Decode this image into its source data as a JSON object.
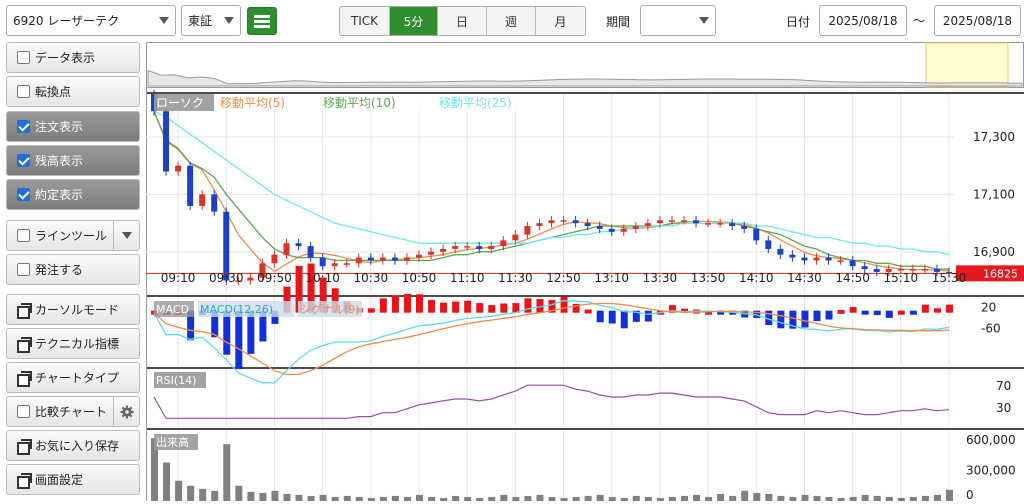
{
  "toolbar": {
    "stock_select": "6920 レーザーテク",
    "market_select": "東証",
    "periods": [
      {
        "label": "TICK",
        "active": false
      },
      {
        "label": "5分",
        "active": true
      },
      {
        "label": "日",
        "active": false
      },
      {
        "label": "週",
        "active": false
      },
      {
        "label": "月",
        "active": false
      }
    ],
    "range_label": "期間",
    "range_select": "",
    "date_label": "日付",
    "date_from": "2025/08/18",
    "date_sep": "～",
    "date_to": "2025/08/18"
  },
  "sidebar": {
    "items": [
      {
        "label": "データ表示",
        "icon": "checkbox",
        "checked": false
      },
      {
        "label": "転換点",
        "icon": "checkbox",
        "checked": false
      },
      {
        "label": "注文表示",
        "icon": "checkbox",
        "checked": true
      },
      {
        "label": "残高表示",
        "icon": "checkbox",
        "checked": true
      },
      {
        "label": "約定表示",
        "icon": "checkbox",
        "checked": true
      },
      {
        "label": "ラインツール",
        "icon": "checkbox",
        "checked": false
      },
      {
        "label": "発注する",
        "icon": "checkbox",
        "checked": false
      },
      {
        "label": "カーソルモード",
        "icon": "window-icon",
        "checked": false
      },
      {
        "label": "テクニカル指標",
        "icon": "window-icon",
        "checked": false
      },
      {
        "label": "チャートタイプ",
        "icon": "window-icon",
        "checked": false
      },
      {
        "label": "比較チャート",
        "icon": "checkbox",
        "checked": false
      },
      {
        "label": "お気に入り保存",
        "icon": "window-icon",
        "checked": false
      },
      {
        "label": "画面設定",
        "icon": "window-icon",
        "checked": false
      }
    ]
  },
  "colors": {
    "up": "#d9332a",
    "down": "#1f3fc4",
    "ma5": "#f28c4a",
    "ma10": "#5fa55a",
    "ma25": "#6fe6f0",
    "accent": "#2f8f2f",
    "rsi": "#9b4fa8",
    "volume": "#808080"
  },
  "main_chart": {
    "legend": [
      "ローソク",
      "移動平均(5)",
      "移動平均(10)",
      "移動平均(25)"
    ],
    "price_ticks": [
      "17,300",
      "17,100",
      "16,900"
    ],
    "current_price": "16825",
    "time_labels": [
      "09:10",
      "09:30",
      "09:50",
      "10:10",
      "10:30",
      "10:50",
      "11:10",
      "11:30",
      "12:50",
      "13:10",
      "13:30",
      "13:50",
      "14:10",
      "14:30",
      "14:50",
      "15:10",
      "15:30"
    ]
  },
  "chart_data": {
    "type": "line",
    "x": [
      "09:00",
      "09:05",
      "09:10",
      "09:15",
      "09:20",
      "09:25",
      "09:30",
      "09:35",
      "09:40",
      "09:45",
      "09:50",
      "09:55",
      "10:00",
      "10:05",
      "10:10",
      "10:15",
      "10:20",
      "10:25",
      "10:30",
      "10:35",
      "10:40",
      "10:45",
      "10:50",
      "10:55",
      "11:00",
      "11:05",
      "11:10",
      "11:15",
      "11:20",
      "11:25",
      "12:30",
      "12:35",
      "12:40",
      "12:45",
      "12:50",
      "12:55",
      "13:00",
      "13:05",
      "13:10",
      "13:15",
      "13:20",
      "13:25",
      "13:30",
      "13:35",
      "13:40",
      "13:45",
      "13:50",
      "13:55",
      "14:00",
      "14:05",
      "14:10",
      "14:15",
      "14:20",
      "14:25",
      "14:30",
      "14:35",
      "14:40",
      "14:45",
      "14:50",
      "14:55",
      "15:00",
      "15:05",
      "15:10",
      "15:15",
      "15:20",
      "15:25",
      "15:30"
    ],
    "series": [
      {
        "name": "ローソク",
        "values": [
          17390,
          17180,
          17200,
          17060,
          17100,
          17040,
          16800,
          16800,
          16810,
          16860,
          16890,
          16930,
          16920,
          16880,
          16850,
          16860,
          16860,
          16880,
          16870,
          16880,
          16870,
          16880,
          16890,
          16900,
          16910,
          16920,
          16920,
          16910,
          16920,
          16940,
          16960,
          16990,
          17000,
          17010,
          17010,
          17000,
          16990,
          16980,
          16970,
          16980,
          16990,
          17000,
          17010,
          17010,
          17010,
          17000,
          17000,
          17000,
          16990,
          16980,
          16940,
          16910,
          16890,
          16880,
          16870,
          16880,
          16870,
          16870,
          16850,
          16840,
          16830,
          16840,
          16840,
          16840,
          16840,
          16830,
          16825
        ]
      },
      {
        "name": "移動平均(5)",
        "values": [
          17390,
          17285,
          17257,
          17208,
          17186,
          17116,
          17040,
          16960,
          16910,
          16862,
          16832,
          16858,
          16882,
          16896,
          16894,
          16888,
          16878,
          16868,
          16862,
          16870,
          16872,
          16876,
          16880,
          16884,
          16890,
          16900,
          16908,
          16912,
          16916,
          16924,
          16930,
          16944,
          16962,
          16980,
          16996,
          17004,
          17002,
          16998,
          16990,
          16984,
          16982,
          16984,
          16990,
          16998,
          17004,
          17006,
          17006,
          17004,
          17002,
          16996,
          16982,
          16966,
          16942,
          16920,
          16898,
          16886,
          16880,
          16876,
          16870,
          16862,
          16852,
          16846,
          16840,
          16838,
          16838,
          16836,
          16834
        ]
      },
      {
        "name": "移動平均(10)",
        "values": [
          17390,
          17290,
          17260,
          17210,
          17190,
          17160,
          17100,
          17050,
          17000,
          16950,
          16910,
          16890,
          16880,
          16880,
          16880,
          16870,
          16870,
          16870,
          16870,
          16870,
          16870,
          16870,
          16870,
          16870,
          16880,
          16890,
          16890,
          16900,
          16900,
          16910,
          16920,
          16930,
          16940,
          16950,
          16960,
          16970,
          16980,
          16990,
          16990,
          16990,
          16990,
          16990,
          16990,
          17000,
          17000,
          17000,
          17000,
          17000,
          17000,
          16990,
          16980,
          16970,
          16960,
          16940,
          16920,
          16910,
          16890,
          16880,
          16870,
          16870,
          16860,
          16860,
          16850,
          16850,
          16850,
          16840,
          16840
        ]
      },
      {
        "name": "移動平均(25)",
        "values": [
          17390,
          17370,
          17340,
          17310,
          17280,
          17250,
          17220,
          17190,
          17160,
          17130,
          17100,
          17080,
          17060,
          17040,
          17020,
          17000,
          16990,
          16980,
          16970,
          16960,
          16950,
          16940,
          16930,
          16930,
          16930,
          16930,
          16930,
          16930,
          16930,
          16930,
          16930,
          16930,
          16940,
          16950,
          16950,
          16960,
          16960,
          16970,
          16970,
          16980,
          16980,
          16990,
          16990,
          16990,
          17000,
          17000,
          17000,
          17000,
          17000,
          17000,
          16990,
          16990,
          16980,
          16970,
          16960,
          16950,
          16950,
          16940,
          16930,
          16930,
          16920,
          16920,
          16910,
          16910,
          16900,
          16900,
          16890
        ]
      }
    ],
    "macd": {
      "legend": [
        "MACD",
        "MACD(12,26)",
        "シグナル(9)"
      ],
      "ticks": [
        "20",
        "-60"
      ]
    },
    "rsi": {
      "legend": "RSI(14)",
      "ticks": [
        "70",
        "30"
      ]
    },
    "volume": {
      "legend": "出来高",
      "ticks": [
        "600,000",
        "300,000",
        "0"
      ],
      "values": [
        620000,
        380000,
        200000,
        150000,
        120000,
        100000,
        560000,
        150000,
        90000,
        80000,
        100000,
        70000,
        60000,
        50000,
        60000,
        40000,
        50000,
        40000,
        30000,
        40000,
        50000,
        40000,
        60000,
        40000,
        30000,
        50000,
        40000,
        30000,
        40000,
        60000,
        40000,
        50000,
        60000,
        40000,
        30000,
        40000,
        50000,
        60000,
        40000,
        30000,
        50000,
        40000,
        30000,
        40000,
        50000,
        60000,
        40000,
        70000,
        50000,
        100000,
        80000,
        70000,
        50000,
        40000,
        60000,
        50000,
        40000,
        30000,
        40000,
        60000,
        50000,
        40000,
        30000,
        40000,
        50000,
        60000,
        110000
      ]
    }
  }
}
